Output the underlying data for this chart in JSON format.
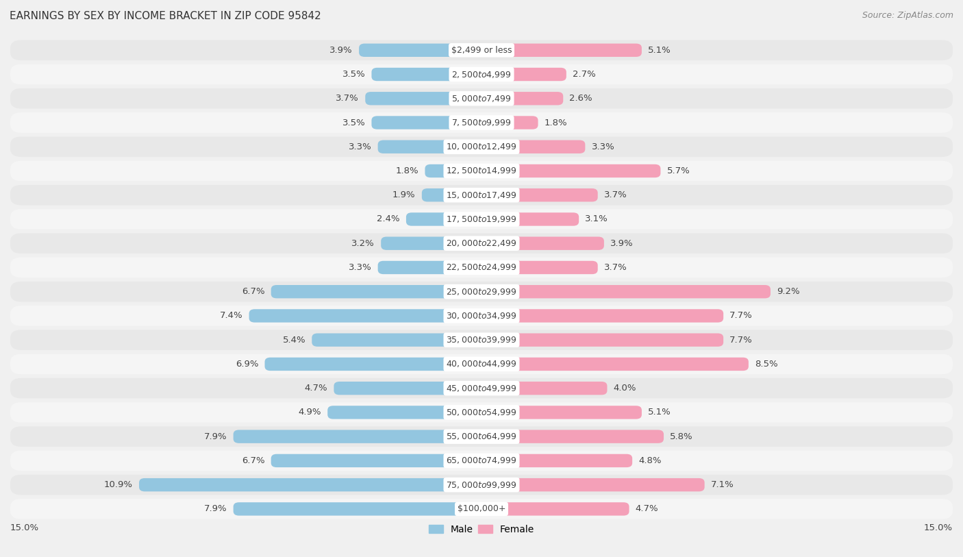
{
  "title": "EARNINGS BY SEX BY INCOME BRACKET IN ZIP CODE 95842",
  "source": "Source: ZipAtlas.com",
  "categories": [
    "$2,499 or less",
    "$2,500 to $4,999",
    "$5,000 to $7,499",
    "$7,500 to $9,999",
    "$10,000 to $12,499",
    "$12,500 to $14,999",
    "$15,000 to $17,499",
    "$17,500 to $19,999",
    "$20,000 to $22,499",
    "$22,500 to $24,999",
    "$25,000 to $29,999",
    "$30,000 to $34,999",
    "$35,000 to $39,999",
    "$40,000 to $44,999",
    "$45,000 to $49,999",
    "$50,000 to $54,999",
    "$55,000 to $64,999",
    "$65,000 to $74,999",
    "$75,000 to $99,999",
    "$100,000+"
  ],
  "male_values": [
    3.9,
    3.5,
    3.7,
    3.5,
    3.3,
    1.8,
    1.9,
    2.4,
    3.2,
    3.3,
    6.7,
    7.4,
    5.4,
    6.9,
    4.7,
    4.9,
    7.9,
    6.7,
    10.9,
    7.9
  ],
  "female_values": [
    5.1,
    2.7,
    2.6,
    1.8,
    3.3,
    5.7,
    3.7,
    3.1,
    3.9,
    3.7,
    9.2,
    7.7,
    7.7,
    8.5,
    4.0,
    5.1,
    5.8,
    4.8,
    7.1,
    4.7
  ],
  "male_color": "#93c6e0",
  "female_color": "#f4a0b8",
  "background_color": "#f0f0f0",
  "row_color_odd": "#e8e8e8",
  "row_color_even": "#f5f5f5",
  "xlim": 15.0,
  "legend_male": "Male",
  "legend_female": "Female",
  "title_fontsize": 11,
  "source_fontsize": 9,
  "bar_height": 0.55,
  "label_fontsize": 9.5,
  "category_fontsize": 9,
  "label_color": "#444444",
  "category_bg_color": "white",
  "category_text_color": "#444444"
}
